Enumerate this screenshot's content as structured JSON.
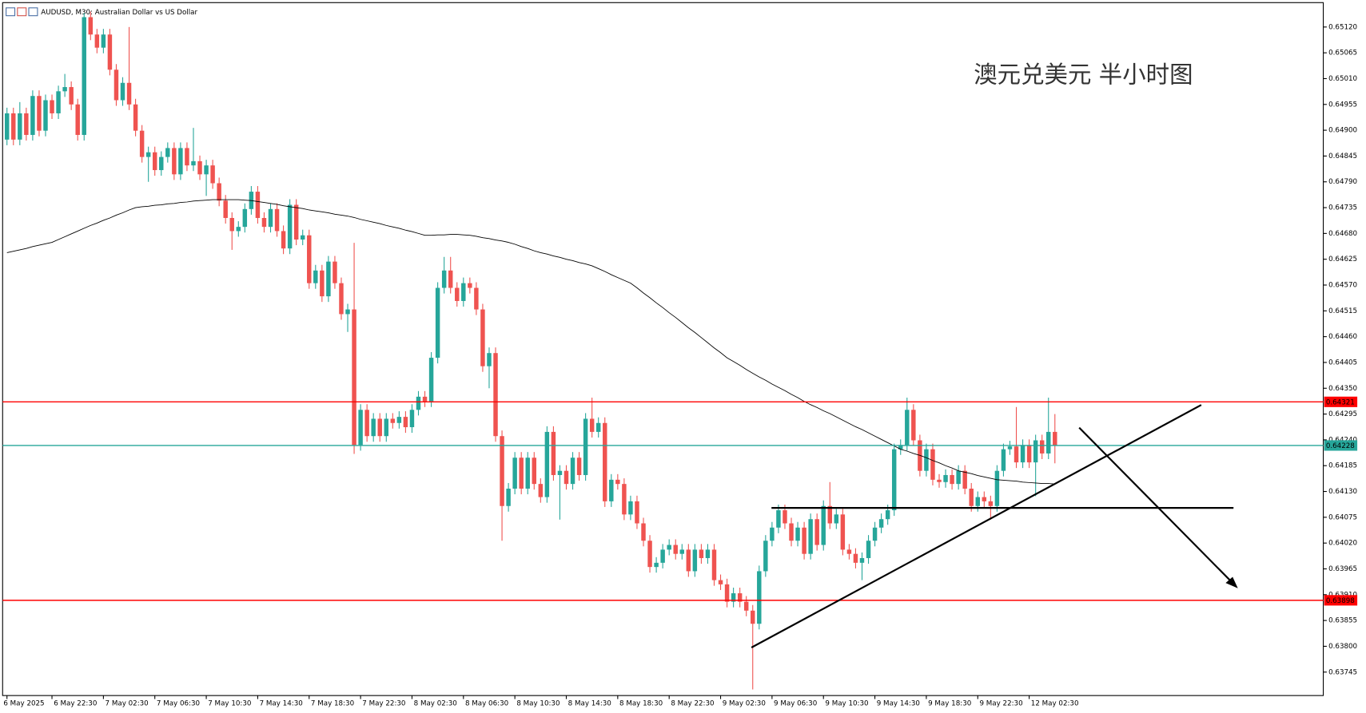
{
  "chart_data": {
    "type": "candlestick",
    "title": "AUDUSD, M30:  Australian Dollar vs US Dollar",
    "annotation": "澳元兑美元 半小时图",
    "up_color": "#26a69a",
    "down_color": "#ef5350",
    "categories": [
      "6 May 2025",
      null,
      null,
      null,
      null,
      null,
      null,
      "6 May 22:30",
      null,
      null,
      null,
      null,
      null,
      null,
      null,
      "7 May 02:30",
      null,
      null,
      null,
      null,
      null,
      null,
      null,
      "7 May 06:30",
      null,
      null,
      null,
      null,
      null,
      null,
      null,
      "7 May 10:30",
      null,
      null,
      null,
      null,
      null,
      null,
      null,
      "7 May 14:30",
      null,
      null,
      null,
      null,
      null,
      null,
      null,
      "7 May 18:30",
      null,
      null,
      null,
      null,
      null,
      null,
      null,
      "7 May 22:30",
      null,
      null,
      null,
      null,
      null,
      null,
      null,
      "8 May 02:30",
      null,
      null,
      null,
      null,
      null,
      null,
      null,
      "8 May 06:30",
      null,
      null,
      null,
      null,
      null,
      null,
      null,
      "8 May 10:30",
      null,
      null,
      null,
      null,
      null,
      null,
      null,
      "8 May 14:30",
      null,
      null,
      null,
      null,
      null,
      null,
      null,
      "8 May 18:30",
      null,
      null,
      null,
      null,
      null,
      null,
      null,
      "8 May 22:30",
      null,
      null,
      null,
      null,
      null,
      null,
      null,
      "9 May 02:30",
      null,
      null,
      null,
      null,
      null,
      null,
      null,
      "9 May 06:30",
      null,
      null,
      null,
      null,
      null,
      null,
      null,
      "9 May 10:30",
      null,
      null,
      null,
      null,
      null,
      null,
      null,
      "9 May 14:30",
      null,
      null,
      null,
      null,
      null,
      null,
      null,
      "9 May 18:30",
      null,
      null,
      null,
      null,
      null,
      null,
      null,
      "9 May 22:30",
      null,
      null,
      null,
      null,
      null,
      null,
      null,
      "12 May 02:30",
      null,
      null,
      null,
      null
    ],
    "open": [
      0.6488,
      0.64936,
      0.6488,
      0.64936,
      0.6489,
      0.64973,
      0.64899,
      0.64964,
      0.64936,
      0.64983,
      0.64992,
      0.64955,
      0.6489,
      0.65141,
      0.65104,
      0.65076,
      0.65104,
      0.65029,
      0.64964,
      0.65001,
      0.64955,
      0.64899,
      0.64843,
      0.64853,
      0.64815,
      0.64843,
      0.64862,
      0.64806,
      0.64862,
      0.64825,
      0.64834,
      0.64806,
      0.64825,
      0.64787,
      0.6475,
      0.64713,
      0.64685,
      0.64694,
      0.64732,
      0.64769,
      0.64713,
      0.64694,
      0.64732,
      0.64685,
      0.64648,
      0.64741,
      0.64667,
      0.64676,
      0.64574,
      0.64601,
      0.64546,
      0.6462,
      0.64574,
      0.64508,
      0.64518,
      0.64229,
      0.64304,
      0.64248,
      0.64285,
      0.64248,
      0.64285,
      0.64276,
      0.64289,
      0.64267,
      0.64304,
      0.64332,
      0.64322,
      0.64415,
      0.64564,
      0.64601,
      0.64564,
      0.64536,
      0.64574,
      0.64564,
      0.64518,
      0.64397,
      0.64425,
      0.64248,
      0.64099,
      0.64136,
      0.64202,
      0.64136,
      0.64202,
      0.64146,
      0.64118,
      0.64257,
      0.64165,
      0.64174,
      0.64146,
      0.64202,
      0.64165,
      0.64285,
      0.64257,
      0.64276,
      0.64109,
      0.64155,
      0.64146,
      0.64081,
      0.64109,
      0.64062,
      0.64025,
      0.63969,
      0.63978,
      0.64006,
      0.64016,
      0.63997,
      0.64006,
      0.6396,
      0.64006,
      0.63988,
      0.64006,
      0.63941,
      0.63932,
      0.63895,
      0.63913,
      0.63895,
      0.63876,
      0.63848,
      0.6396,
      0.64025,
      0.64053,
      0.6409,
      0.64062,
      0.64025,
      0.64053,
      0.63997,
      0.64071,
      0.64016,
      0.64099,
      0.64062,
      0.64081,
      0.64006,
      0.63997,
      0.63978,
      0.63988,
      0.64025,
      0.64053,
      0.64071,
      0.6409,
      0.6422,
      0.64229,
      0.64304,
      0.64239,
      0.64174,
      0.6422,
      0.64155,
      0.6415,
      0.64165,
      0.64146,
      0.64174,
      0.64136,
      0.64099,
      0.64118,
      0.64109,
      0.64099,
      0.64174,
      0.6422,
      0.64226,
      0.64192,
      0.64229,
      0.64192,
      0.64239,
      0.64211,
      0.64257
    ],
    "high": [
      0.64948,
      0.64948,
      0.6496,
      0.64948,
      0.64985,
      0.64985,
      0.64976,
      0.64976,
      0.64995,
      0.6502,
      0.65004,
      0.64967,
      0.6515,
      0.65153,
      0.65116,
      0.65116,
      0.65116,
      0.65041,
      0.65013,
      0.6512,
      0.64967,
      0.64911,
      0.64865,
      0.64865,
      0.64855,
      0.64874,
      0.64874,
      0.64874,
      0.64874,
      0.64905,
      0.64846,
      0.64837,
      0.64837,
      0.64799,
      0.64762,
      0.64725,
      0.64706,
      0.64744,
      0.64781,
      0.64781,
      0.64725,
      0.64744,
      0.64744,
      0.64697,
      0.64753,
      0.64753,
      0.64688,
      0.64688,
      0.64613,
      0.64613,
      0.64632,
      0.64632,
      0.64586,
      0.6453,
      0.6466,
      0.64316,
      0.64316,
      0.64297,
      0.64297,
      0.64297,
      0.64297,
      0.64301,
      0.64301,
      0.64316,
      0.64344,
      0.64344,
      0.64427,
      0.64576,
      0.6463,
      0.6463,
      0.64576,
      0.64586,
      0.64586,
      0.64576,
      0.6453,
      0.64437,
      0.64437,
      0.6426,
      0.64148,
      0.64214,
      0.64214,
      0.64214,
      0.64214,
      0.64158,
      0.64269,
      0.64269,
      0.64186,
      0.64186,
      0.64214,
      0.64214,
      0.64297,
      0.6433,
      0.64288,
      0.64288,
      0.64167,
      0.64167,
      0.64158,
      0.64121,
      0.64121,
      0.64074,
      0.64037,
      0.6399,
      0.64018,
      0.64028,
      0.64028,
      0.64018,
      0.64018,
      0.64018,
      0.64018,
      0.64018,
      0.64018,
      0.63953,
      0.63944,
      0.63925,
      0.63925,
      0.63907,
      0.63888,
      0.63972,
      0.64037,
      0.64065,
      0.64102,
      0.64102,
      0.64074,
      0.64065,
      0.64065,
      0.64083,
      0.64083,
      0.64111,
      0.6415,
      0.64093,
      0.64093,
      0.64018,
      0.64009,
      0.64,
      0.64037,
      0.64065,
      0.64083,
      0.64102,
      0.64232,
      0.64241,
      0.6433,
      0.64316,
      0.64251,
      0.64232,
      0.64232,
      0.64167,
      0.64177,
      0.64177,
      0.64186,
      0.64186,
      0.64148,
      0.6413,
      0.6413,
      0.64121,
      0.64186,
      0.64232,
      0.64238,
      0.6431,
      0.64241,
      0.64241,
      0.64251,
      0.64251,
      0.6433,
      0.64295
    ],
    "low": [
      0.64868,
      0.64868,
      0.64868,
      0.64878,
      0.64878,
      0.64887,
      0.64887,
      0.64924,
      0.64924,
      0.64971,
      0.64943,
      0.64878,
      0.64878,
      0.65092,
      0.65064,
      0.65064,
      0.65017,
      0.64952,
      0.64952,
      0.64943,
      0.64887,
      0.64831,
      0.6479,
      0.64803,
      0.64803,
      0.64831,
      0.64794,
      0.64794,
      0.64813,
      0.64813,
      0.64794,
      0.6476,
      0.64775,
      0.64738,
      0.64701,
      0.64645,
      0.64673,
      0.64682,
      0.6472,
      0.64701,
      0.64682,
      0.64682,
      0.64673,
      0.64636,
      0.64636,
      0.64655,
      0.64655,
      0.64562,
      0.64562,
      0.64534,
      0.64534,
      0.64562,
      0.64496,
      0.6447,
      0.6421,
      0.64217,
      0.64236,
      0.64236,
      0.64236,
      0.64236,
      0.64264,
      0.64264,
      0.64255,
      0.64255,
      0.64292,
      0.6431,
      0.6431,
      0.64403,
      0.64552,
      0.64552,
      0.64524,
      0.64524,
      0.64552,
      0.64506,
      0.64385,
      0.6435,
      0.64236,
      0.64025,
      0.64087,
      0.64124,
      0.64124,
      0.64124,
      0.64134,
      0.64106,
      0.64106,
      0.64153,
      0.6407,
      0.64134,
      0.64134,
      0.64153,
      0.64153,
      0.64245,
      0.64245,
      0.64097,
      0.64097,
      0.64134,
      0.64069,
      0.64069,
      0.6405,
      0.64013,
      0.63957,
      0.63957,
      0.63966,
      0.63994,
      0.63985,
      0.63985,
      0.63948,
      0.63948,
      0.63976,
      0.63976,
      0.63929,
      0.6392,
      0.63883,
      0.63883,
      0.63883,
      0.63864,
      0.63708,
      0.63836,
      0.63948,
      0.64013,
      0.64041,
      0.6405,
      0.64013,
      0.64013,
      0.63985,
      0.63985,
      0.64004,
      0.64004,
      0.6405,
      0.6405,
      0.63994,
      0.63985,
      0.63966,
      0.63941,
      0.63976,
      0.64013,
      0.64041,
      0.64059,
      0.64078,
      0.64208,
      0.64217,
      0.64227,
      0.64162,
      0.64162,
      0.64143,
      0.64138,
      0.64138,
      0.64134,
      0.64134,
      0.64124,
      0.64087,
      0.64087,
      0.64097,
      0.6407,
      0.64087,
      0.64162,
      0.64208,
      0.6418,
      0.6418,
      0.6418,
      0.6412,
      0.64199,
      0.64199,
      0.6419
    ],
    "close": [
      0.64936,
      0.6488,
      0.64936,
      0.6489,
      0.64973,
      0.64899,
      0.64964,
      0.64936,
      0.64983,
      0.64992,
      0.64955,
      0.6489,
      0.65141,
      0.65104,
      0.65076,
      0.65104,
      0.65029,
      0.64964,
      0.65001,
      0.64955,
      0.64899,
      0.64843,
      0.64853,
      0.64815,
      0.64843,
      0.64862,
      0.64806,
      0.64862,
      0.64825,
      0.64834,
      0.64806,
      0.64825,
      0.64787,
      0.6475,
      0.64713,
      0.64685,
      0.64694,
      0.64732,
      0.64769,
      0.64713,
      0.64694,
      0.64732,
      0.64685,
      0.64648,
      0.64741,
      0.64667,
      0.64676,
      0.64574,
      0.64601,
      0.64546,
      0.6462,
      0.64574,
      0.64508,
      0.64518,
      0.64229,
      0.64304,
      0.64248,
      0.64285,
      0.64248,
      0.64285,
      0.64276,
      0.64289,
      0.64267,
      0.64304,
      0.64332,
      0.64322,
      0.64415,
      0.64564,
      0.64601,
      0.64564,
      0.64536,
      0.64574,
      0.64564,
      0.64518,
      0.64397,
      0.64425,
      0.64248,
      0.64099,
      0.64136,
      0.64202,
      0.64136,
      0.64202,
      0.64146,
      0.64118,
      0.64257,
      0.64165,
      0.64174,
      0.64146,
      0.64202,
      0.64165,
      0.64285,
      0.64257,
      0.64276,
      0.64109,
      0.64155,
      0.64146,
      0.64081,
      0.64109,
      0.64062,
      0.64025,
      0.63969,
      0.63978,
      0.64006,
      0.64016,
      0.63997,
      0.64006,
      0.6396,
      0.64006,
      0.63988,
      0.64006,
      0.63941,
      0.63932,
      0.63895,
      0.63913,
      0.63895,
      0.63876,
      0.63848,
      0.6396,
      0.64025,
      0.64053,
      0.6409,
      0.64062,
      0.64025,
      0.64053,
      0.63997,
      0.64071,
      0.64016,
      0.64099,
      0.64062,
      0.64081,
      0.64006,
      0.63997,
      0.63978,
      0.63988,
      0.64025,
      0.64053,
      0.64071,
      0.6409,
      0.6422,
      0.64229,
      0.64304,
      0.64239,
      0.64174,
      0.6422,
      0.64155,
      0.6415,
      0.64165,
      0.64146,
      0.64174,
      0.64136,
      0.64099,
      0.64118,
      0.64109,
      0.64099,
      0.64174,
      0.6422,
      0.64226,
      0.64192,
      0.64229,
      0.64192,
      0.64239,
      0.64211,
      0.64257,
      0.64228
    ],
    "ma": {
      "color": "#000000",
      "values": [
        0.64639,
        0.64642,
        0.64645,
        0.64648,
        0.64652,
        0.64655,
        0.64658,
        0.64661,
        0.64667,
        0.64673,
        0.64679,
        0.64685,
        0.64691,
        0.64697,
        0.64702,
        0.64708,
        0.64713,
        0.64719,
        0.64724,
        0.6473,
        0.64735,
        0.64737,
        0.64738,
        0.6474,
        0.64741,
        0.64743,
        0.64744,
        0.64746,
        0.64747,
        0.64749,
        0.6475,
        0.64751,
        0.64752,
        0.64752,
        0.64752,
        0.64752,
        0.64752,
        0.64751,
        0.6475,
        0.64748,
        0.64746,
        0.64744,
        0.64742,
        0.64739,
        0.64737,
        0.64735,
        0.64733,
        0.6473,
        0.64728,
        0.64726,
        0.64724,
        0.64721,
        0.64719,
        0.64717,
        0.64714,
        0.6471,
        0.64707,
        0.64704,
        0.64701,
        0.64697,
        0.64694,
        0.64691,
        0.64687,
        0.64684,
        0.6468,
        0.64676,
        0.64676,
        0.64677,
        0.64677,
        0.64678,
        0.64678,
        0.64677,
        0.64676,
        0.64674,
        0.64671,
        0.64669,
        0.64666,
        0.64664,
        0.64661,
        0.64657,
        0.64652,
        0.64648,
        0.64643,
        0.64639,
        0.64636,
        0.64632,
        0.64629,
        0.64625,
        0.64622,
        0.64618,
        0.64615,
        0.64611,
        0.64605,
        0.64599,
        0.64592,
        0.64586,
        0.6458,
        0.64574,
        0.64564,
        0.64553,
        0.64543,
        0.64532,
        0.64522,
        0.64511,
        0.64501,
        0.6449,
        0.64479,
        0.64469,
        0.64458,
        0.64447,
        0.64436,
        0.64426,
        0.64415,
        0.64407,
        0.64399,
        0.6439,
        0.64382,
        0.64374,
        0.64367,
        0.64359,
        0.64352,
        0.64345,
        0.64337,
        0.6433,
        0.64322,
        0.64315,
        0.64309,
        0.64302,
        0.64296,
        0.64289,
        0.64282,
        0.64275,
        0.64268,
        0.64262,
        0.64255,
        0.64248,
        0.64241,
        0.64234,
        0.64227,
        0.6422,
        0.64216,
        0.64211,
        0.64207,
        0.64202,
        0.64196,
        0.64191,
        0.64185,
        0.6418,
        0.64174,
        0.64171,
        0.64168,
        0.64164,
        0.64161,
        0.64158,
        0.64155,
        0.64154,
        0.64153,
        0.64152,
        0.6415,
        0.64149,
        0.64148,
        0.64147,
        0.64147,
        0.64146
      ]
    },
    "hlines": [
      {
        "value": 0.64321,
        "color": "#ff0000"
      },
      {
        "value": 0.63898,
        "color": "#ff0000"
      },
      {
        "value": 0.64228,
        "color": "#26a69a"
      }
    ],
    "ylim": [
      0.63695,
      0.65172
    ],
    "yticks": [
      {
        "value": 0.6512,
        "label": "0.65120"
      },
      0.65065,
      {
        "value": 0.6501,
        "label": "0.65010"
      },
      0.64955,
      {
        "value": 0.649,
        "label": "0.64900"
      },
      0.64845,
      {
        "value": 0.6479,
        "label": "0.64790"
      },
      0.64735,
      {
        "value": 0.6468,
        "label": "0.64680"
      },
      0.64625,
      {
        "value": 0.6457,
        "label": "0.64570"
      },
      0.64515,
      {
        "value": 0.6446,
        "label": "0.64460"
      },
      0.64405,
      {
        "value": 0.6435,
        "label": "0.64350"
      },
      0.64295,
      {
        "value": 0.6424,
        "label": "0.64240"
      },
      0.64185,
      {
        "value": 0.6413,
        "label": "0.64130"
      },
      0.64075,
      {
        "value": 0.6402,
        "label": "0.64020"
      },
      0.63965,
      {
        "value": 0.6391,
        "label": "0.63910"
      },
      0.63855,
      {
        "value": 0.638,
        "label": "0.63800"
      },
      0.63745
    ]
  }
}
